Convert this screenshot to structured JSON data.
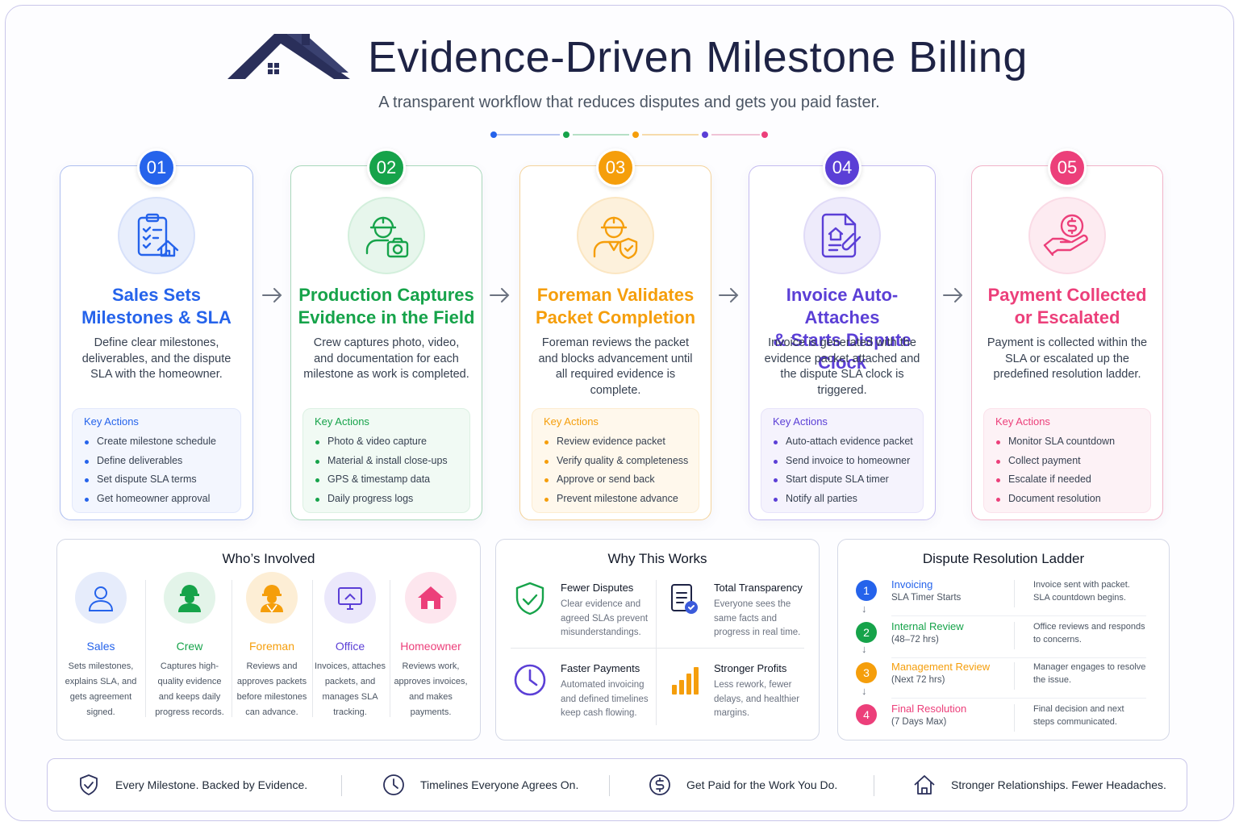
{
  "header": {
    "title": "Evidence-Driven Milestone Billing",
    "subtitle": "A transparent workflow that reduces disputes and gets you paid faster."
  },
  "colors": {
    "blue": "#2563eb",
    "green": "#16a34a",
    "orange": "#f59e0b",
    "purple": "#5b3fd6",
    "pink": "#ec3f7a",
    "navy": "#1e2345"
  },
  "steps": [
    {
      "number": "01",
      "icon": "clipboard-house-icon",
      "title_line1": "Sales Sets",
      "title_line2": "Milestones & SLA",
      "description": "Define clear milestones, deliverables, and the dispute SLA with the homeowner.",
      "key_actions_label": "Key Actions",
      "actions": [
        "Create milestone schedule",
        "Define deliverables",
        "Set dispute SLA terms",
        "Get homeowner approval"
      ]
    },
    {
      "number": "02",
      "icon": "worker-camera-icon",
      "title_line1": "Production Captures",
      "title_line2": "Evidence in the Field",
      "description": "Crew captures photo, video, and documentation for each milestone as work is completed.",
      "key_actions_label": "Key Actions",
      "actions": [
        "Photo & video capture",
        "Material & install close-ups",
        "GPS & timestamp data",
        "Daily progress logs"
      ]
    },
    {
      "number": "03",
      "icon": "foreman-shield-icon",
      "title_line1": "Foreman Validates",
      "title_line2": "Packet Completion",
      "description": "Foreman reviews the packet and blocks advancement until all required evidence is complete.",
      "key_actions_label": "Key Actions",
      "actions": [
        "Review evidence packet",
        "Verify quality & completeness",
        "Approve or send back",
        "Prevent milestone advance"
      ]
    },
    {
      "number": "04",
      "icon": "invoice-attachment-icon",
      "title_line1": "Invoice Auto-Attaches",
      "title_line2": "& Starts Dispute Clock",
      "description": "Invoice is generated with the evidence packet attached and the dispute SLA clock is triggered.",
      "key_actions_label": "Key Actions",
      "actions": [
        "Auto-attach evidence packet",
        "Send invoice to homeowner",
        "Start dispute SLA timer",
        "Notify all parties"
      ]
    },
    {
      "number": "05",
      "icon": "hand-dollar-icon",
      "title_line1": "Payment Collected",
      "title_line2": "or Escalated",
      "description": "Payment is collected within the SLA or escalated up the predefined resolution ladder.",
      "key_actions_label": "Key Actions",
      "actions": [
        "Monitor SLA countdown",
        "Collect payment",
        "Escalate if needed",
        "Document resolution"
      ]
    }
  ],
  "whos_involved": {
    "title": "Who’s Involved",
    "roles": [
      {
        "name": "Sales",
        "icon": "person-icon",
        "description": "Sets milestones, explains SLA, and gets agreement signed."
      },
      {
        "name": "Crew",
        "icon": "hardhat-worker-icon",
        "description": "Captures high-quality evidence and keeps daily progress records."
      },
      {
        "name": "Foreman",
        "icon": "foreman-icon",
        "description": "Reviews and approves packets before milestones can advance."
      },
      {
        "name": "Office",
        "icon": "monitor-icon",
        "description": "Invoices, attaches packets, and manages SLA tracking."
      },
      {
        "name": "Homeowner",
        "icon": "house-icon",
        "description": "Reviews work, approves invoices, and makes payments."
      }
    ]
  },
  "why_this_works": {
    "title": "Why This Works",
    "items": [
      {
        "title": "Fewer Disputes",
        "icon": "shield-check-icon",
        "description": "Clear evidence and agreed SLAs prevent misunderstandings."
      },
      {
        "title": "Total Transparency",
        "icon": "document-check-icon",
        "description": "Everyone sees the same facts and progress in real time."
      },
      {
        "title": "Faster Payments",
        "icon": "clock-icon",
        "description": "Automated invoicing and defined timelines keep cash flowing."
      },
      {
        "title": "Stronger Profits",
        "icon": "bar-chart-icon",
        "description": "Less rework, fewer delays, and healthier margins."
      }
    ]
  },
  "dispute_ladder": {
    "title": "Dispute Resolution Ladder",
    "rungs": [
      {
        "number": "1",
        "title": "Invoicing",
        "sub": "SLA Timer Starts",
        "detail": "Invoice sent with packet. SLA countdown begins."
      },
      {
        "number": "2",
        "title": "Internal Review",
        "sub": "(48–72 hrs)",
        "detail": "Office reviews and responds to concerns."
      },
      {
        "number": "3",
        "title": "Management Review",
        "sub": "(Next 72 hrs)",
        "detail": "Manager engages to resolve the issue."
      },
      {
        "number": "4",
        "title": "Final Resolution",
        "sub": "(7 Days Max)",
        "detail": "Final decision and next steps communicated."
      }
    ]
  },
  "footer": [
    {
      "icon": "shield-check-icon",
      "text": "Every Milestone.  Backed by Evidence."
    },
    {
      "icon": "clock-icon",
      "text": "Timelines Everyone Agrees On."
    },
    {
      "icon": "dollar-circle-icon",
      "text": "Get Paid  for  the Work You Do."
    },
    {
      "icon": "house-icon",
      "text": "Stronger Relationships. Fewer Headaches."
    }
  ]
}
